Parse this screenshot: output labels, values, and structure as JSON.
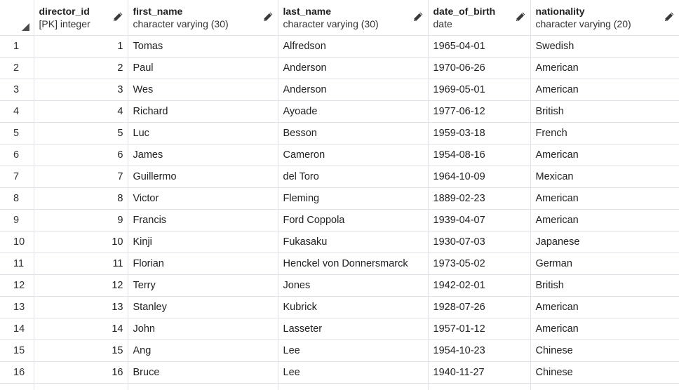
{
  "grid": {
    "columns": [
      {
        "name": "director_id",
        "type": "[PK] integer",
        "edit_icon": "pencil-icon"
      },
      {
        "name": "first_name",
        "type": "character varying (30)",
        "edit_icon": "pencil-icon"
      },
      {
        "name": "last_name",
        "type": "character varying (30)",
        "edit_icon": "pencil-icon"
      },
      {
        "name": "date_of_birth",
        "type": "date",
        "edit_icon": "pencil-icon"
      },
      {
        "name": "nationality",
        "type": "character varying (20)",
        "edit_icon": "pencil-icon"
      }
    ],
    "rows": [
      {
        "n": "1",
        "director_id": "1",
        "first_name": "Tomas",
        "last_name": "Alfredson",
        "date_of_birth": "1965-04-01",
        "nationality": "Swedish"
      },
      {
        "n": "2",
        "director_id": "2",
        "first_name": "Paul",
        "last_name": "Anderson",
        "date_of_birth": "1970-06-26",
        "nationality": "American"
      },
      {
        "n": "3",
        "director_id": "3",
        "first_name": "Wes",
        "last_name": "Anderson",
        "date_of_birth": "1969-05-01",
        "nationality": "American"
      },
      {
        "n": "4",
        "director_id": "4",
        "first_name": "Richard",
        "last_name": "Ayoade",
        "date_of_birth": "1977-06-12",
        "nationality": "British"
      },
      {
        "n": "5",
        "director_id": "5",
        "first_name": "Luc",
        "last_name": "Besson",
        "date_of_birth": "1959-03-18",
        "nationality": "French"
      },
      {
        "n": "6",
        "director_id": "6",
        "first_name": "James",
        "last_name": "Cameron",
        "date_of_birth": "1954-08-16",
        "nationality": "American"
      },
      {
        "n": "7",
        "director_id": "7",
        "first_name": "Guillermo",
        "last_name": "del Toro",
        "date_of_birth": "1964-10-09",
        "nationality": "Mexican"
      },
      {
        "n": "8",
        "director_id": "8",
        "first_name": "Victor",
        "last_name": "Fleming",
        "date_of_birth": "1889-02-23",
        "nationality": "American"
      },
      {
        "n": "9",
        "director_id": "9",
        "first_name": "Francis",
        "last_name": "Ford Coppola",
        "date_of_birth": "1939-04-07",
        "nationality": "American"
      },
      {
        "n": "10",
        "director_id": "10",
        "first_name": "Kinji",
        "last_name": "Fukasaku",
        "date_of_birth": "1930-07-03",
        "nationality": "Japanese"
      },
      {
        "n": "11",
        "director_id": "11",
        "first_name": "Florian",
        "last_name": "Henckel von Donnersmarck",
        "date_of_birth": "1973-05-02",
        "nationality": "German"
      },
      {
        "n": "12",
        "director_id": "12",
        "first_name": "Terry",
        "last_name": "Jones",
        "date_of_birth": "1942-02-01",
        "nationality": "British"
      },
      {
        "n": "13",
        "director_id": "13",
        "first_name": "Stanley",
        "last_name": "Kubrick",
        "date_of_birth": "1928-07-26",
        "nationality": "American"
      },
      {
        "n": "14",
        "director_id": "14",
        "first_name": "John",
        "last_name": "Lasseter",
        "date_of_birth": "1957-01-12",
        "nationality": "American"
      },
      {
        "n": "15",
        "director_id": "15",
        "first_name": "Ang",
        "last_name": "Lee",
        "date_of_birth": "1954-10-23",
        "nationality": "Chinese"
      },
      {
        "n": "16",
        "director_id": "16",
        "first_name": "Bruce",
        "last_name": "Lee",
        "date_of_birth": "1940-11-27",
        "nationality": "Chinese"
      },
      {
        "n": "",
        "director_id": "",
        "first_name": "",
        "last_name": "",
        "date_of_birth": "",
        "nationality": ""
      }
    ]
  }
}
